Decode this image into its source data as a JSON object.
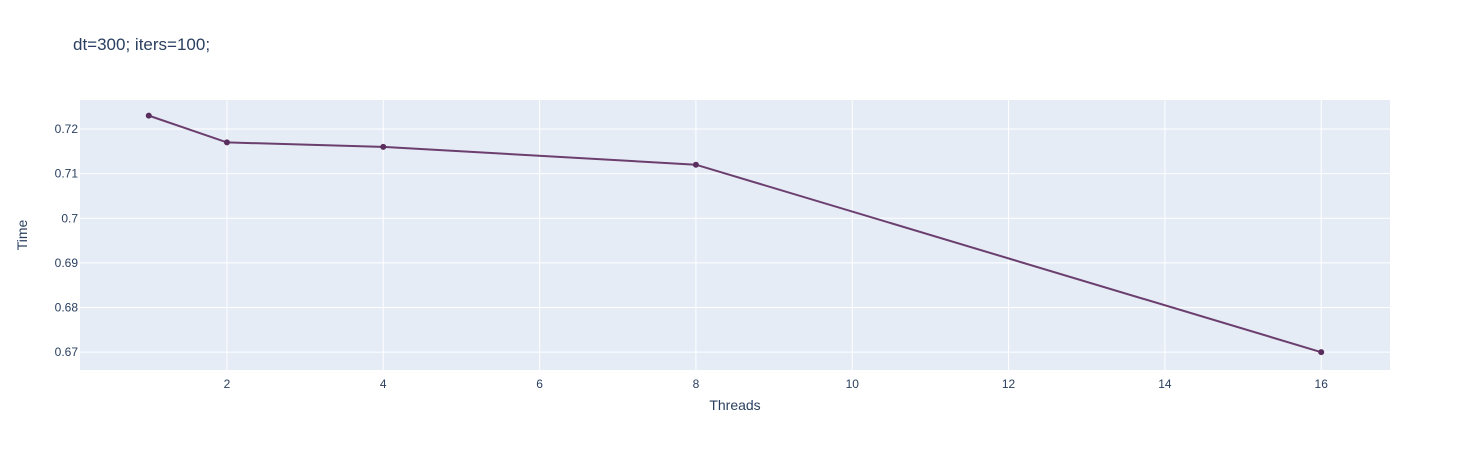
{
  "chart_data": {
    "type": "line",
    "title": "dt=300; iters=100;",
    "xlabel": "Threads",
    "ylabel": "Time",
    "x": [
      1,
      2,
      4,
      8,
      16
    ],
    "series": [
      {
        "values": [
          0.723,
          0.717,
          0.716,
          0.712,
          0.67
        ]
      }
    ],
    "xlim": [
      0.12,
      16.88
    ],
    "ylim": [
      0.666,
      0.7265
    ],
    "x_ticks": [
      2,
      4,
      6,
      8,
      10,
      12,
      14,
      16
    ],
    "x_tick_labels": [
      "2",
      "4",
      "6",
      "8",
      "10",
      "12",
      "14",
      "16"
    ],
    "y_ticks": [
      0.67,
      0.68,
      0.69,
      0.7,
      0.71,
      0.72
    ],
    "y_tick_labels": [
      "0.67",
      "0.68",
      "0.69",
      "0.7",
      "0.71",
      "0.72"
    ],
    "grid": true,
    "legend": "none",
    "colors": {
      "line": "#6b3e6e",
      "marker": "#5a2e5c",
      "plot_background": "#e5ecf6",
      "grid": "#ffffff",
      "text": "#2a3f5f"
    }
  }
}
